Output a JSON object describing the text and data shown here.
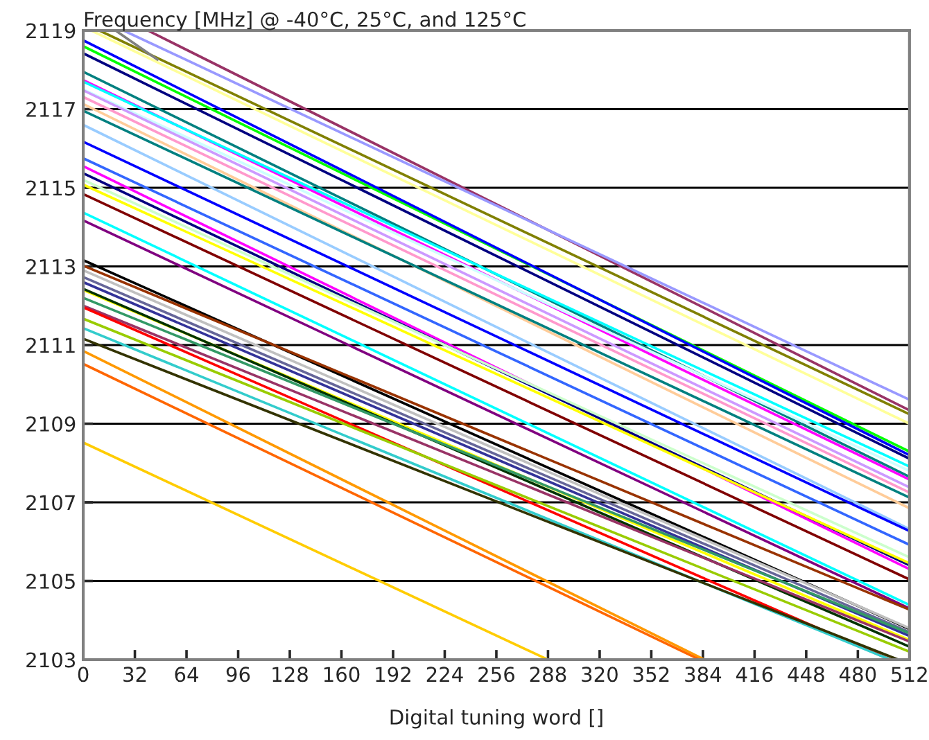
{
  "chart_data": {
    "type": "line",
    "title": "Frequency [MHz] @ -40°C, 25°C, and 125°C",
    "xlabel": "Digital tuning word []",
    "xlim": [
      0,
      512
    ],
    "xticks": [
      0,
      32,
      64,
      96,
      128,
      160,
      192,
      224,
      256,
      288,
      320,
      352,
      384,
      416,
      448,
      480,
      512
    ],
    "ylim": [
      2103,
      2119
    ],
    "yticks": [
      2103,
      2105,
      2107,
      2109,
      2111,
      2113,
      2115,
      2117,
      2119
    ],
    "grid": "y",
    "legend": false,
    "marker": "none",
    "line_style": "solid",
    "series": [
      {
        "color": "#993366",
        "x": [
          40,
          512
        ],
        "values": [
          2119,
          2109.34
        ]
      },
      {
        "color": "#9999ff",
        "x": [
          25,
          512
        ],
        "values": [
          2119,
          2109.61
        ]
      },
      {
        "color": "#808000",
        "x": [
          10,
          512
        ],
        "values": [
          2119,
          2109.24
        ]
      },
      {
        "color": "#ffff99",
        "x": [
          5,
          512
        ],
        "values": [
          2119,
          2109.0
        ]
      },
      {
        "color": "#808080",
        "x": [
          20,
          46
        ],
        "values": [
          2119,
          2118.26
        ]
      },
      {
        "color": "#00ff00",
        "x": [
          0,
          512
        ],
        "values": [
          2118.6,
          2108.29
        ]
      },
      {
        "color": "#0000ff",
        "x": [
          0,
          512
        ],
        "values": [
          2118.75,
          2108.2
        ]
      },
      {
        "color": "#000080",
        "x": [
          0,
          512
        ],
        "values": [
          2118.42,
          2108.11
        ]
      },
      {
        "color": "#008080",
        "x": [
          0,
          512
        ],
        "values": [
          2117.95,
          2107.65
        ]
      },
      {
        "color": "#ff00ff",
        "x": [
          0,
          512
        ],
        "values": [
          2117.74,
          2107.58
        ]
      },
      {
        "color": "#00ffff",
        "x": [
          0,
          512
        ],
        "values": [
          2117.7,
          2107.91
        ]
      },
      {
        "color": "#ccffff",
        "x": [
          0,
          512
        ],
        "values": [
          2117.5,
          2107.8
        ]
      },
      {
        "color": "#cc99ff",
        "x": [
          0,
          512
        ],
        "values": [
          2117.48,
          2107.38
        ]
      },
      {
        "color": "#ff99cc",
        "x": [
          0,
          512
        ],
        "values": [
          2117.31,
          2107.25
        ]
      },
      {
        "color": "#ffcc99",
        "x": [
          0,
          512
        ],
        "values": [
          2117.13,
          2106.85
        ]
      },
      {
        "color": "#008080",
        "x": [
          0,
          512
        ],
        "values": [
          2116.96,
          2107.12
        ]
      },
      {
        "color": "#99ccff",
        "x": [
          0,
          512
        ],
        "values": [
          2116.6,
          2106.32
        ]
      },
      {
        "color": "#0000ff",
        "x": [
          0,
          512
        ],
        "values": [
          2116.17,
          2106.27
        ]
      },
      {
        "color": "#3366ff",
        "x": [
          0,
          512
        ],
        "values": [
          2115.75,
          2105.92
        ]
      },
      {
        "color": "#ff00ff",
        "x": [
          0,
          512
        ],
        "values": [
          2115.55,
          2105.3
        ]
      },
      {
        "color": "#000080",
        "x": [
          0,
          512
        ],
        "values": [
          2115.37,
          2105.4
        ]
      },
      {
        "color": "#ccffcc",
        "x": [
          0,
          512
        ],
        "values": [
          2115.2,
          2105.6
        ]
      },
      {
        "color": "#ffff00",
        "x": [
          0,
          512
        ],
        "values": [
          2115.08,
          2105.45
        ]
      },
      {
        "color": "#800000",
        "x": [
          0,
          512
        ],
        "values": [
          2114.84,
          2105.04
        ]
      },
      {
        "color": "#00ffff",
        "x": [
          0,
          512
        ],
        "values": [
          2114.37,
          2104.39
        ]
      },
      {
        "color": "#800080",
        "x": [
          0,
          512
        ],
        "values": [
          2114.17,
          2104.3
        ]
      },
      {
        "color": "#000000",
        "x": [
          0,
          512
        ],
        "values": [
          2113.16,
          2103.78
        ]
      },
      {
        "color": "#993300",
        "x": [
          0,
          512
        ],
        "values": [
          2113.02,
          2104.27
        ]
      },
      {
        "color": "#c0c0c0",
        "x": [
          0,
          512
        ],
        "values": [
          2112.9,
          2103.8
        ]
      },
      {
        "color": "#666699",
        "x": [
          0,
          512
        ],
        "values": [
          2112.73,
          2103.7
        ]
      },
      {
        "color": "#333399",
        "x": [
          0,
          512
        ],
        "values": [
          2112.6,
          2103.6
        ]
      },
      {
        "color": "#ffff00",
        "x": [
          0,
          512
        ],
        "values": [
          2112.4,
          2103.5
        ]
      },
      {
        "color": "#003300",
        "x": [
          0,
          512
        ],
        "values": [
          2112.43,
          2103.33
        ]
      },
      {
        "color": "#339966",
        "x": [
          0,
          512
        ],
        "values": [
          2112.2,
          2103.67
        ]
      },
      {
        "color": "#993366",
        "x": [
          0,
          512
        ],
        "values": [
          2112.0,
          2103.46
        ]
      },
      {
        "color": "#ff0000",
        "x": [
          0,
          500
        ],
        "values": [
          2111.96,
          2103
        ]
      },
      {
        "color": "#99cc00",
        "x": [
          0,
          512
        ],
        "values": [
          2111.67,
          2103.2
        ]
      },
      {
        "color": "#33cccc",
        "x": [
          0,
          500
        ],
        "values": [
          2111.43,
          2103
        ]
      },
      {
        "color": "#333300",
        "x": [
          0,
          505
        ],
        "values": [
          2111.16,
          2103
        ]
      },
      {
        "color": "#ff9900",
        "x": [
          0,
          385
        ],
        "values": [
          2110.85,
          2103
        ]
      },
      {
        "color": "#ff6600",
        "x": [
          0,
          382
        ],
        "values": [
          2110.52,
          2103
        ]
      },
      {
        "color": "#ffcc00",
        "x": [
          0,
          288
        ],
        "values": [
          2108.52,
          2103
        ]
      }
    ]
  }
}
